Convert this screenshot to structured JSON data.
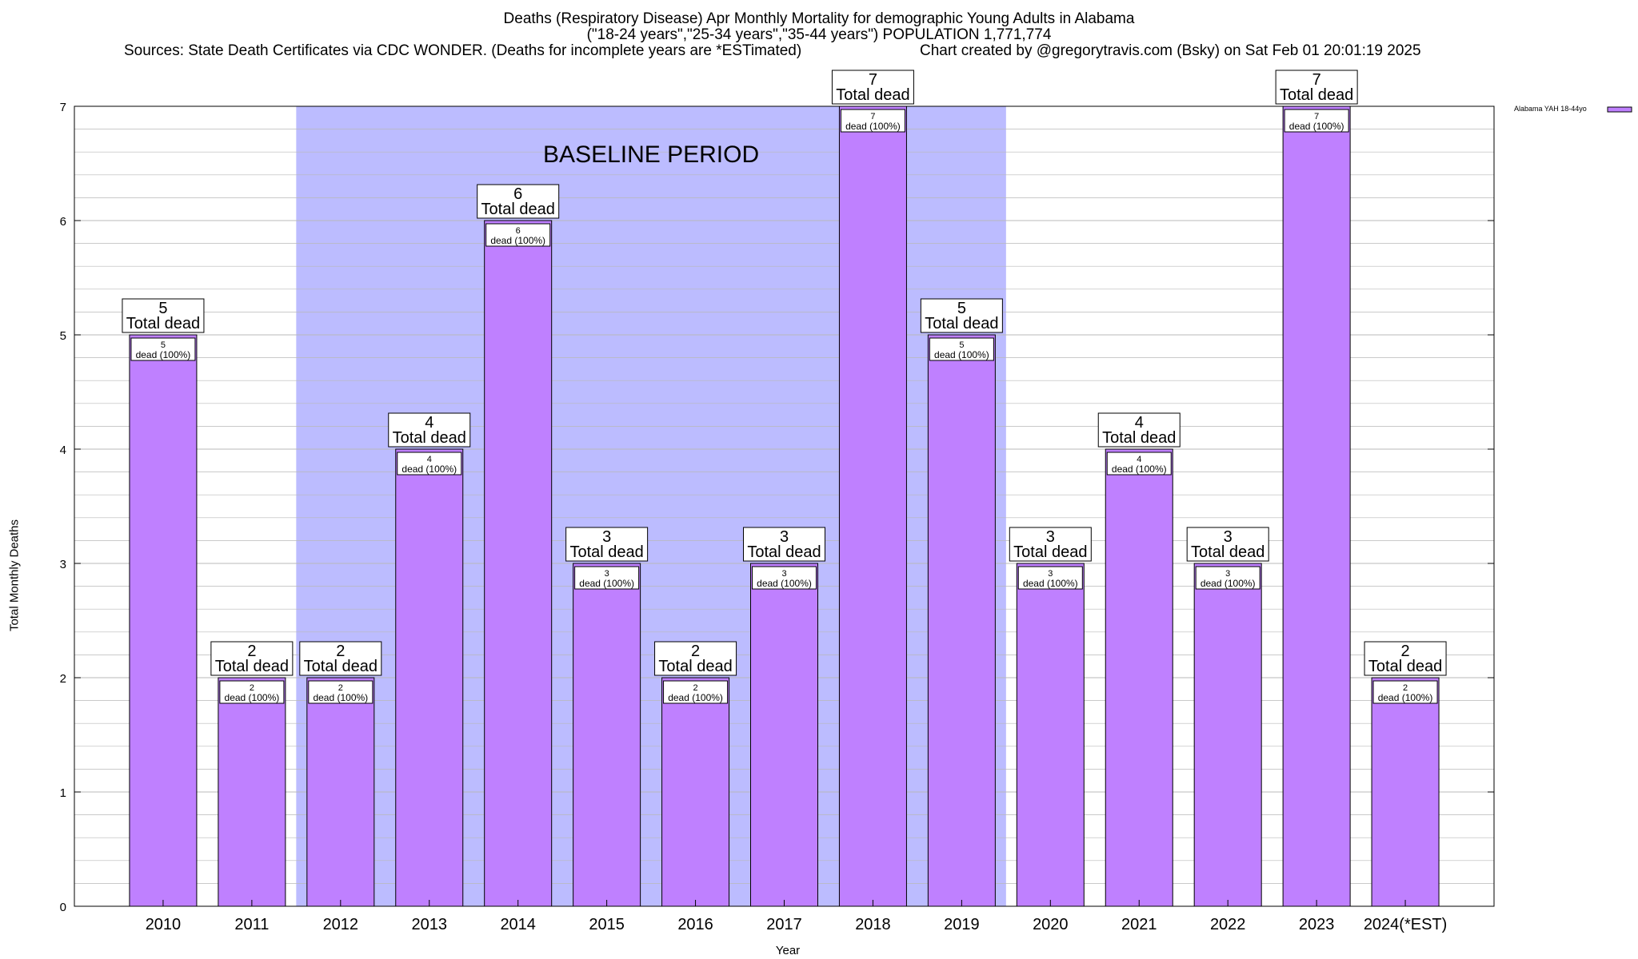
{
  "title_lines": [
    "Deaths (Respiratory Disease) Apr Monthly Mortality for demographic Young Adults in Alabama",
    "(\"18-24 years\",\"25-34 years\",\"35-44 years\") POPULATION 1,771,774",
    "Sources: State Death Certificates via CDC WONDER. (Deaths for incomplete years are *ESTimated)",
    "Chart created by @gregorytravis.com (Bsky) on Sat Feb 01 20:01:19 2025"
  ],
  "colors": {
    "bar": "#bf80ff",
    "baseline_band": "#bcbcff",
    "grid": "#b8b8b8"
  },
  "chart_data": {
    "type": "bar",
    "title": "Deaths (Respiratory Disease) Apr Monthly Mortality for demographic Young Adults in Alabama",
    "xlabel": "Year",
    "ylabel": "Total Monthly Deaths",
    "ylim": [
      0,
      7
    ],
    "yticks": [
      0,
      1,
      2,
      3,
      4,
      5,
      6,
      7
    ],
    "grid": true,
    "legend_position": "top-right",
    "categories": [
      "2010",
      "2011",
      "2012",
      "2013",
      "2014",
      "2015",
      "2016",
      "2017",
      "2018",
      "2019",
      "2020",
      "2021",
      "2022",
      "2023",
      "2024(*EST)"
    ],
    "series": [
      {
        "name": "Alabama YAH 18-44yo",
        "values": [
          5,
          2,
          2,
          4,
          6,
          3,
          2,
          3,
          7,
          5,
          3,
          4,
          3,
          7,
          2
        ]
      }
    ],
    "total_label": "Total dead",
    "inner_label": "dead (100%)",
    "baseline": {
      "label": "BASELINE PERIOD",
      "start": "2012",
      "end": "2019"
    }
  }
}
